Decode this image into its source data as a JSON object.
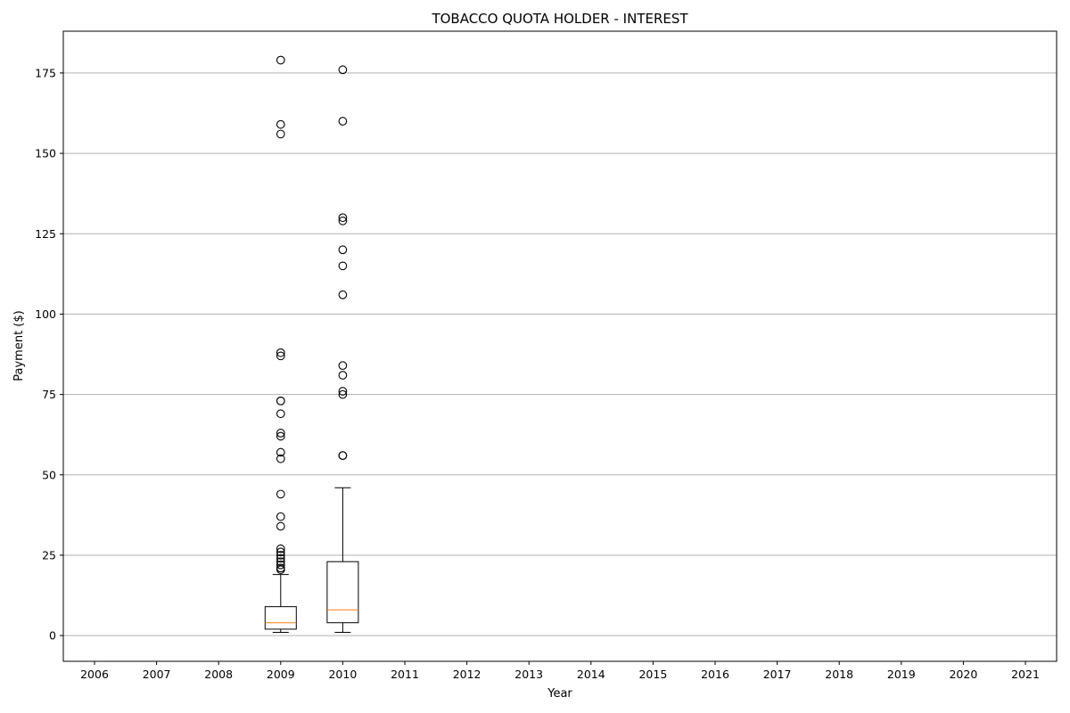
{
  "chart_data": {
    "type": "boxplot",
    "title": "TOBACCO QUOTA HOLDER - INTEREST",
    "xlabel": "Year",
    "ylabel": "Payment ($)",
    "categories": [
      "2006",
      "2007",
      "2008",
      "2009",
      "2010",
      "2011",
      "2012",
      "2013",
      "2014",
      "2015",
      "2016",
      "2017",
      "2018",
      "2019",
      "2020",
      "2021"
    ],
    "ylim": [
      -8,
      188
    ],
    "yticks": [
      0,
      25,
      50,
      75,
      100,
      125,
      150,
      175
    ],
    "grid": "horizontal",
    "colors": {
      "box": "#000000",
      "median": "#ff7f0e",
      "grid": "#b0b0b0",
      "flier": "#000000"
    },
    "boxes": [
      {
        "category": "2009",
        "whislo": 1,
        "q1": 2,
        "med": 4,
        "q3": 9,
        "whishi": 19,
        "fliers": [
          179,
          159,
          156,
          88,
          87,
          73,
          73,
          69,
          63,
          62,
          57,
          55,
          44,
          37,
          34,
          27,
          26,
          25,
          24,
          23,
          22,
          21,
          20.5
        ]
      },
      {
        "category": "2010",
        "whislo": 1,
        "q1": 4,
        "med": 8,
        "q3": 23,
        "whishi": 46,
        "fliers": [
          176,
          160,
          130,
          129,
          120,
          115,
          106,
          84,
          81,
          76,
          75,
          56,
          56
        ]
      }
    ]
  }
}
